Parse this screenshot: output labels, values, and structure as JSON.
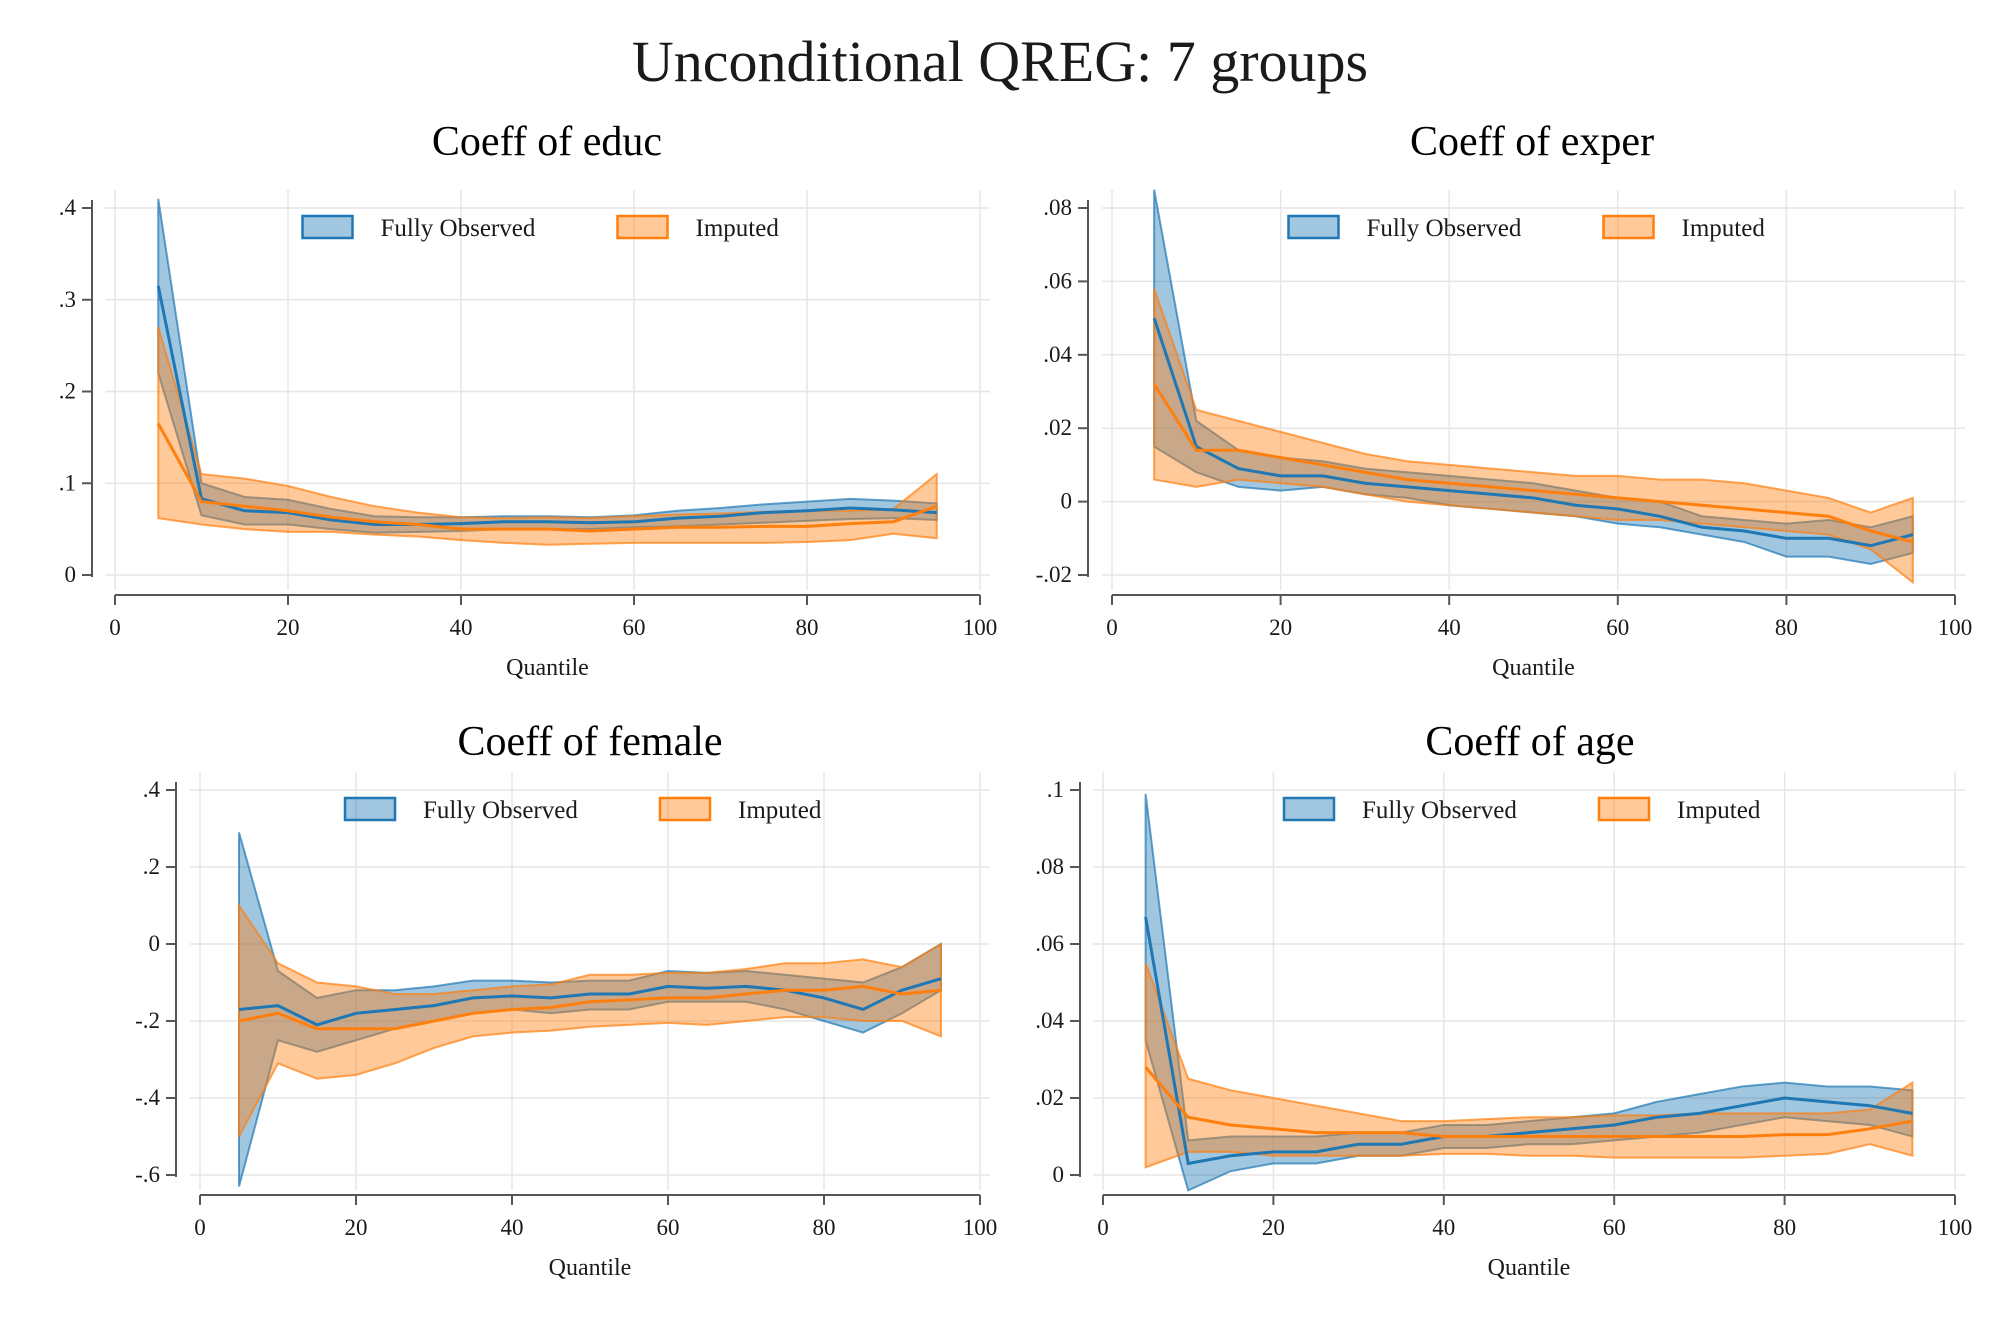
{
  "figure_title": "Unconditional QREG: 7 groups",
  "colors": {
    "fully_observed": "#1f77b4",
    "imputed": "#ff7f0e",
    "gridline": "#e6e6e6",
    "axis": "#555555"
  },
  "chart_data": [
    {
      "type": "area",
      "title": "Coeff of educ",
      "xlabel": "Quantile",
      "ylabel": "",
      "xlim": [
        0,
        100
      ],
      "ylim": [
        0,
        0.4
      ],
      "x_ticks": [
        0,
        20,
        40,
        60,
        80,
        100
      ],
      "x_tick_labels": [
        "0",
        "20",
        "40",
        "60",
        "80",
        "100"
      ],
      "y_ticks": [
        0,
        0.1,
        0.2,
        0.3,
        0.4
      ],
      "y_tick_labels": [
        "0",
        ".1",
        ".2",
        ".3",
        ".4"
      ],
      "grid": true,
      "legend_position": "top",
      "x": [
        5,
        10,
        15,
        20,
        25,
        30,
        35,
        40,
        45,
        50,
        55,
        60,
        65,
        70,
        75,
        80,
        85,
        90,
        95
      ],
      "series": [
        {
          "name": "Fully Observed",
          "estimate": [
            0.315,
            0.083,
            0.07,
            0.068,
            0.06,
            0.055,
            0.055,
            0.056,
            0.058,
            0.058,
            0.057,
            0.058,
            0.062,
            0.064,
            0.068,
            0.07,
            0.073,
            0.071,
            0.068
          ],
          "lower": [
            0.22,
            0.065,
            0.055,
            0.055,
            0.05,
            0.046,
            0.047,
            0.048,
            0.05,
            0.05,
            0.05,
            0.052,
            0.053,
            0.055,
            0.057,
            0.059,
            0.061,
            0.062,
            0.06
          ],
          "upper": [
            0.41,
            0.1,
            0.085,
            0.082,
            0.072,
            0.064,
            0.063,
            0.063,
            0.064,
            0.064,
            0.063,
            0.065,
            0.07,
            0.073,
            0.077,
            0.08,
            0.083,
            0.081,
            0.078
          ]
        },
        {
          "name": "Imputed",
          "estimate": [
            0.165,
            0.08,
            0.075,
            0.07,
            0.063,
            0.058,
            0.055,
            0.05,
            0.05,
            0.05,
            0.048,
            0.05,
            0.052,
            0.052,
            0.053,
            0.053,
            0.056,
            0.058,
            0.075
          ],
          "lower": [
            0.062,
            0.055,
            0.05,
            0.047,
            0.047,
            0.044,
            0.042,
            0.038,
            0.035,
            0.033,
            0.034,
            0.035,
            0.035,
            0.035,
            0.035,
            0.036,
            0.038,
            0.045,
            0.04
          ],
          "upper": [
            0.27,
            0.11,
            0.105,
            0.097,
            0.085,
            0.075,
            0.068,
            0.063,
            0.062,
            0.063,
            0.062,
            0.064,
            0.066,
            0.067,
            0.069,
            0.07,
            0.07,
            0.072,
            0.11
          ]
        }
      ]
    },
    {
      "type": "area",
      "title": "Coeff of exper",
      "xlabel": "Quantile",
      "ylabel": "",
      "xlim": [
        0,
        100
      ],
      "ylim": [
        -0.02,
        0.08
      ],
      "x_ticks": [
        0,
        20,
        40,
        60,
        80,
        100
      ],
      "x_tick_labels": [
        "0",
        "20",
        "40",
        "60",
        "80",
        "100"
      ],
      "y_ticks": [
        -0.02,
        0,
        0.02,
        0.04,
        0.06,
        0.08
      ],
      "y_tick_labels": [
        "-.02",
        "0",
        ".02",
        ".04",
        ".06",
        ".08"
      ],
      "grid": true,
      "legend_position": "top",
      "x": [
        5,
        10,
        15,
        20,
        25,
        30,
        35,
        40,
        45,
        50,
        55,
        60,
        65,
        70,
        75,
        80,
        85,
        90,
        95
      ],
      "series": [
        {
          "name": "Fully Observed",
          "estimate": [
            0.05,
            0.015,
            0.009,
            0.007,
            0.007,
            0.005,
            0.004,
            0.003,
            0.002,
            0.001,
            -0.001,
            -0.002,
            -0.004,
            -0.007,
            -0.008,
            -0.01,
            -0.01,
            -0.012,
            -0.009
          ],
          "lower": [
            0.015,
            0.008,
            0.004,
            0.003,
            0.004,
            0.002,
            0.001,
            -0.001,
            -0.002,
            -0.003,
            -0.004,
            -0.006,
            -0.007,
            -0.009,
            -0.011,
            -0.015,
            -0.015,
            -0.017,
            -0.014
          ],
          "upper": [
            0.085,
            0.022,
            0.014,
            0.012,
            0.011,
            0.009,
            0.008,
            0.007,
            0.006,
            0.005,
            0.003,
            0.001,
            0.0,
            -0.004,
            -0.005,
            -0.006,
            -0.005,
            -0.007,
            -0.004
          ]
        },
        {
          "name": "Imputed",
          "estimate": [
            0.032,
            0.014,
            0.014,
            0.012,
            0.01,
            0.008,
            0.006,
            0.005,
            0.004,
            0.003,
            0.002,
            0.001,
            0.0,
            -0.001,
            -0.002,
            -0.003,
            -0.004,
            -0.008,
            -0.011
          ],
          "lower": [
            0.006,
            0.004,
            0.006,
            0.005,
            0.004,
            0.002,
            0.0,
            -0.001,
            -0.002,
            -0.003,
            -0.004,
            -0.005,
            -0.005,
            -0.006,
            -0.007,
            -0.008,
            -0.009,
            -0.013,
            -0.022
          ],
          "upper": [
            0.058,
            0.025,
            0.022,
            0.019,
            0.016,
            0.013,
            0.011,
            0.01,
            0.009,
            0.008,
            0.007,
            0.007,
            0.006,
            0.006,
            0.005,
            0.003,
            0.001,
            -0.003,
            0.001
          ]
        }
      ]
    },
    {
      "type": "area",
      "title": "Coeff of female",
      "xlabel": "Quantile",
      "ylabel": "",
      "xlim": [
        0,
        100
      ],
      "ylim": [
        -0.6,
        0.4
      ],
      "x_ticks": [
        0,
        20,
        40,
        60,
        80,
        100
      ],
      "x_tick_labels": [
        "0",
        "20",
        "40",
        "60",
        "80",
        "100"
      ],
      "y_ticks": [
        -0.6,
        -0.4,
        -0.2,
        0,
        0.2,
        0.4
      ],
      "y_tick_labels": [
        "-.6",
        "-.4",
        "-.2",
        "0",
        ".2",
        ".4"
      ],
      "grid": true,
      "legend_position": "top",
      "x": [
        5,
        10,
        15,
        20,
        25,
        30,
        35,
        40,
        45,
        50,
        55,
        60,
        65,
        70,
        75,
        80,
        85,
        90,
        95
      ],
      "series": [
        {
          "name": "Fully Observed",
          "estimate": [
            -0.17,
            -0.16,
            -0.21,
            -0.18,
            -0.17,
            -0.16,
            -0.14,
            -0.135,
            -0.14,
            -0.13,
            -0.13,
            -0.11,
            -0.115,
            -0.11,
            -0.12,
            -0.14,
            -0.17,
            -0.12,
            -0.09
          ],
          "lower": [
            -0.63,
            -0.25,
            -0.28,
            -0.25,
            -0.22,
            -0.2,
            -0.18,
            -0.17,
            -0.18,
            -0.17,
            -0.17,
            -0.15,
            -0.15,
            -0.15,
            -0.17,
            -0.2,
            -0.23,
            -0.18,
            -0.12
          ],
          "upper": [
            0.29,
            -0.07,
            -0.14,
            -0.12,
            -0.12,
            -0.11,
            -0.095,
            -0.095,
            -0.1,
            -0.095,
            -0.095,
            -0.07,
            -0.075,
            -0.07,
            -0.08,
            -0.09,
            -0.1,
            -0.06,
            -0.0
          ]
        },
        {
          "name": "Imputed",
          "estimate": [
            -0.2,
            -0.18,
            -0.22,
            -0.22,
            -0.22,
            -0.2,
            -0.18,
            -0.17,
            -0.165,
            -0.15,
            -0.145,
            -0.14,
            -0.14,
            -0.13,
            -0.12,
            -0.12,
            -0.11,
            -0.13,
            -0.12
          ],
          "lower": [
            -0.5,
            -0.31,
            -0.35,
            -0.34,
            -0.31,
            -0.27,
            -0.24,
            -0.23,
            -0.225,
            -0.215,
            -0.21,
            -0.205,
            -0.21,
            -0.2,
            -0.19,
            -0.19,
            -0.2,
            -0.2,
            -0.24
          ],
          "upper": [
            0.1,
            -0.05,
            -0.1,
            -0.11,
            -0.13,
            -0.13,
            -0.12,
            -0.11,
            -0.105,
            -0.08,
            -0.08,
            -0.075,
            -0.075,
            -0.065,
            -0.05,
            -0.05,
            -0.04,
            -0.06,
            0.0
          ]
        }
      ]
    },
    {
      "type": "area",
      "title": "Coeff of age",
      "xlabel": "Quantile",
      "ylabel": "",
      "xlim": [
        0,
        100
      ],
      "ylim": [
        0,
        0.1
      ],
      "x_ticks": [
        0,
        20,
        40,
        60,
        80,
        100
      ],
      "x_tick_labels": [
        "0",
        "20",
        "40",
        "60",
        "80",
        "100"
      ],
      "y_ticks": [
        0,
        0.02,
        0.04,
        0.06,
        0.08,
        0.1
      ],
      "y_tick_labels": [
        "0",
        ".02",
        ".04",
        ".06",
        ".08",
        ".1"
      ],
      "grid": true,
      "legend_position": "top",
      "x": [
        5,
        10,
        15,
        20,
        25,
        30,
        35,
        40,
        45,
        50,
        55,
        60,
        65,
        70,
        75,
        80,
        85,
        90,
        95
      ],
      "series": [
        {
          "name": "Fully Observed",
          "estimate": [
            0.067,
            0.003,
            0.005,
            0.006,
            0.006,
            0.008,
            0.008,
            0.01,
            0.01,
            0.011,
            0.012,
            0.013,
            0.015,
            0.016,
            0.018,
            0.02,
            0.019,
            0.018,
            0.016
          ],
          "lower": [
            0.035,
            -0.004,
            0.001,
            0.003,
            0.003,
            0.005,
            0.005,
            0.007,
            0.007,
            0.008,
            0.008,
            0.009,
            0.01,
            0.011,
            0.013,
            0.015,
            0.014,
            0.013,
            0.01
          ],
          "upper": [
            0.099,
            0.009,
            0.01,
            0.01,
            0.01,
            0.011,
            0.011,
            0.013,
            0.013,
            0.014,
            0.015,
            0.016,
            0.019,
            0.021,
            0.023,
            0.024,
            0.023,
            0.023,
            0.022
          ]
        },
        {
          "name": "Imputed",
          "estimate": [
            0.028,
            0.015,
            0.013,
            0.012,
            0.011,
            0.011,
            0.011,
            0.01,
            0.01,
            0.01,
            0.01,
            0.01,
            0.01,
            0.01,
            0.01,
            0.0105,
            0.0105,
            0.012,
            0.014
          ],
          "lower": [
            0.002,
            0.006,
            0.006,
            0.005,
            0.005,
            0.005,
            0.005,
            0.0055,
            0.0055,
            0.005,
            0.005,
            0.0045,
            0.0045,
            0.0045,
            0.0045,
            0.005,
            0.0055,
            0.008,
            0.005
          ],
          "upper": [
            0.055,
            0.025,
            0.022,
            0.02,
            0.018,
            0.016,
            0.014,
            0.014,
            0.0145,
            0.015,
            0.015,
            0.0155,
            0.0155,
            0.016,
            0.016,
            0.016,
            0.016,
            0.017,
            0.024
          ]
        }
      ]
    }
  ]
}
